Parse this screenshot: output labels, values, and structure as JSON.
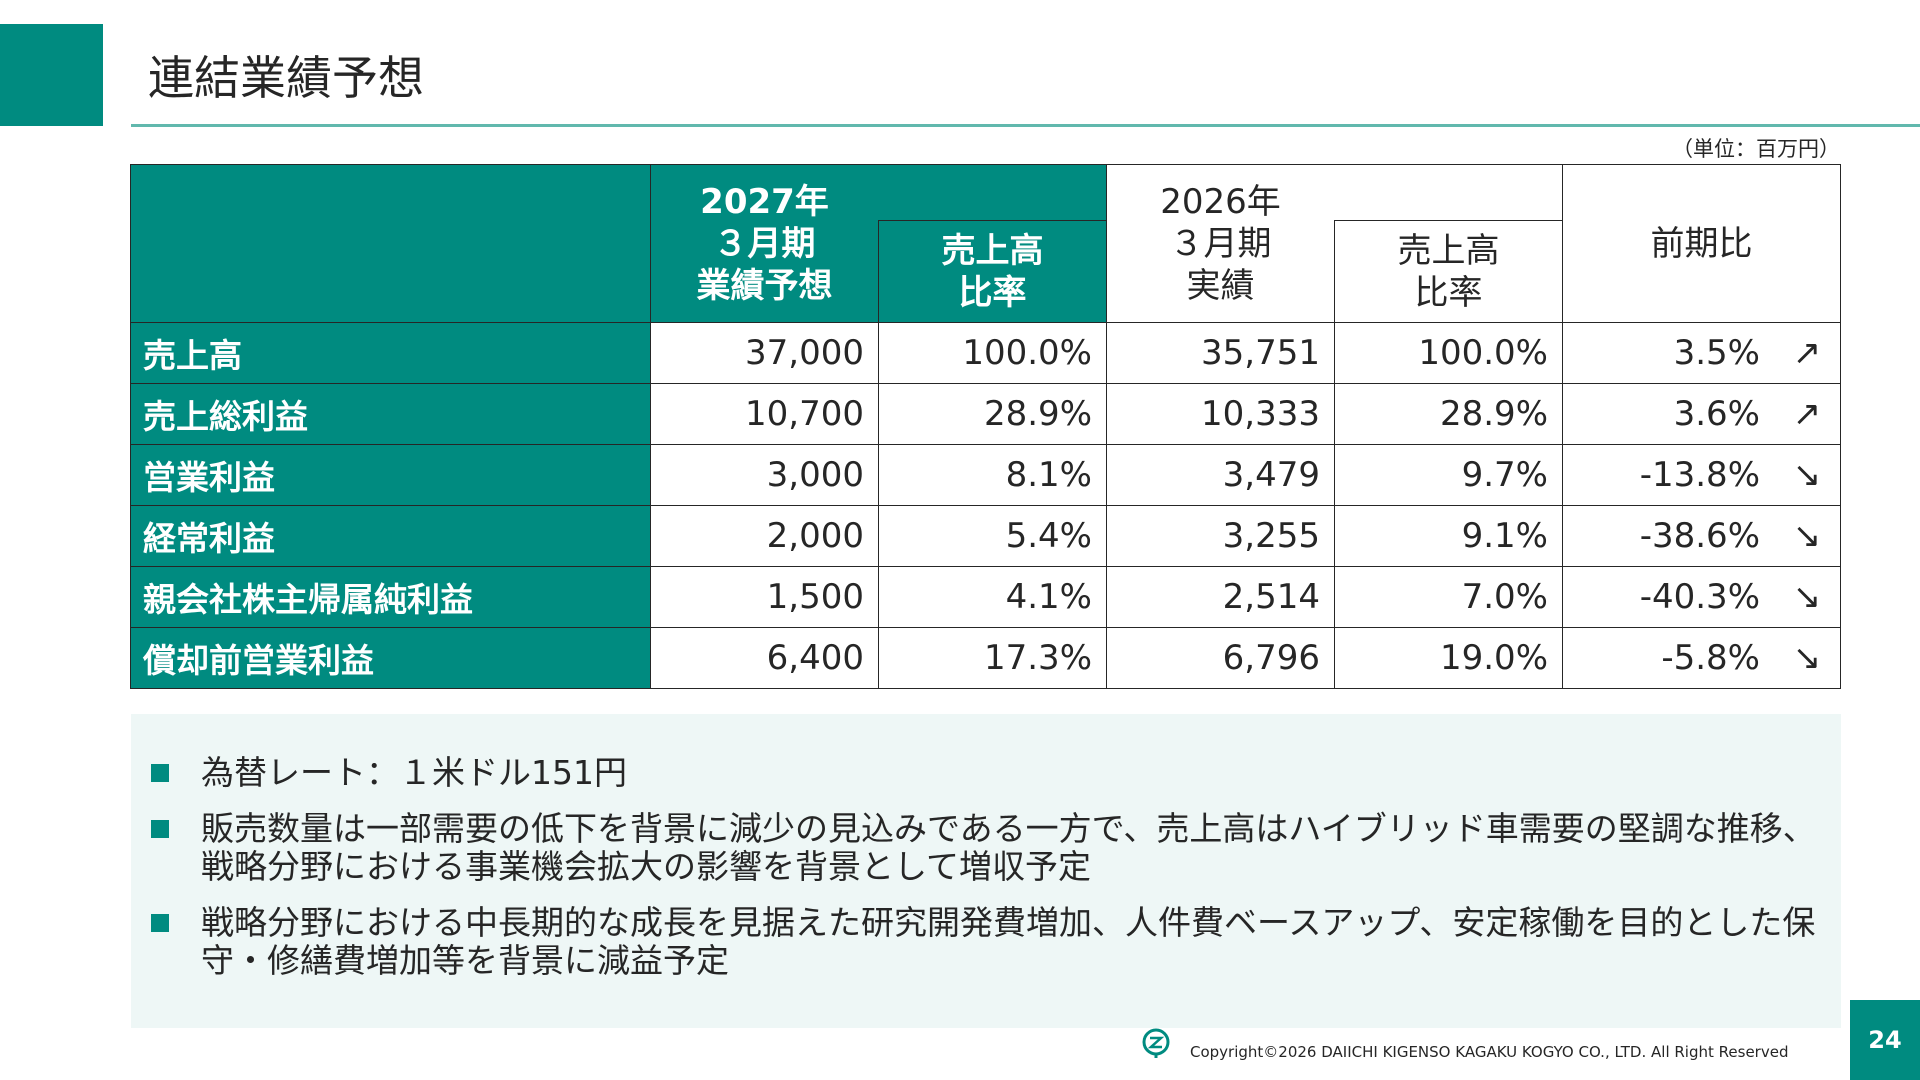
{
  "header": {
    "title": "連結業績予想",
    "unit": "（単位：百万円）"
  },
  "table": {
    "col_headers": {
      "fy2027_year": "2027年",
      "fy2027_period": "３月期",
      "fy2027_kind": "業績予想",
      "fy2027_ratio_line1": "売上高",
      "fy2027_ratio_line2": "比率",
      "fy2026_year": "2026年",
      "fy2026_period": "３月期",
      "fy2026_kind": "実績",
      "fy2026_ratio_line1": "売上高",
      "fy2026_ratio_line2": "比率",
      "yoy": "前期比"
    },
    "rows": [
      {
        "label": "売上高",
        "f27": "37,000",
        "f27_ratio": "100.0%",
        "a26": "35,751",
        "a26_ratio": "100.0%",
        "yoy": "3.5%",
        "arrow": "↗"
      },
      {
        "label": "売上総利益",
        "f27": "10,700",
        "f27_ratio": "28.9%",
        "a26": "10,333",
        "a26_ratio": "28.9%",
        "yoy": "3.6%",
        "arrow": "↗"
      },
      {
        "label": "営業利益",
        "f27": "3,000",
        "f27_ratio": "8.1%",
        "a26": "3,479",
        "a26_ratio": "9.7%",
        "yoy": "-13.8%",
        "arrow": "↘"
      },
      {
        "label": "経常利益",
        "f27": "2,000",
        "f27_ratio": "5.4%",
        "a26": "3,255",
        "a26_ratio": "9.1%",
        "yoy": "-38.6%",
        "arrow": "↘"
      },
      {
        "label": "親会社株主帰属純利益",
        "f27": "1,500",
        "f27_ratio": "4.1%",
        "a26": "2,514",
        "a26_ratio": "7.0%",
        "yoy": "-40.3%",
        "arrow": "↘"
      },
      {
        "label": "償却前営業利益",
        "f27": "6,400",
        "f27_ratio": "17.3%",
        "a26": "6,796",
        "a26_ratio": "19.0%",
        "yoy": "-5.8%",
        "arrow": "↘"
      }
    ]
  },
  "notes": [
    "為替レート：１米ドル151円",
    "販売数量は一部需要の低下を背景に減少の見込みである一方で、売上高はハイブリッド車需要の堅調な推移、戦略分野における事業機会拡大の影響を背景として増収予定",
    "戦略分野における中長期的な成長を見据えた研究開発費増加、人件費ベースアップ、安定稼働を目的とした保守・修繕費増加等を背景に減益予定"
  ],
  "footer": {
    "copyright": "Copyright©2026 DAIICHI KIGENSO KAGAKU KOGYO CO., LTD. All Right Reserved",
    "page_number": "24",
    "logo_icon": "company-logo-icon"
  },
  "colors": {
    "accent": "#008b80",
    "accent_light": "#61b8ad",
    "notes_bg": "#eef7f6",
    "text": "#262626"
  }
}
